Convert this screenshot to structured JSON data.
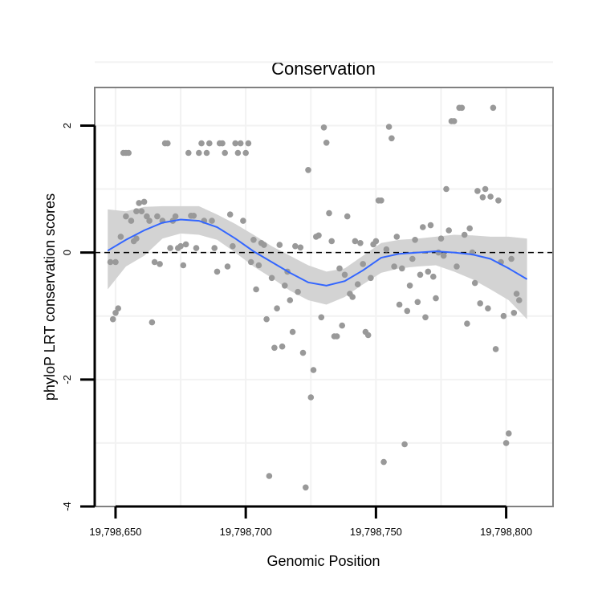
{
  "chart_data": {
    "type": "scatter",
    "title": "Conservation",
    "xlabel": "Genomic Position",
    "ylabel": "phyloP LRT conservation scores",
    "xlim": [
      19798642,
      19798818
    ],
    "ylim": [
      -4,
      2.6
    ],
    "x_ticks": [
      19798650,
      19798700,
      19798750,
      19798800
    ],
    "x_tick_labels": [
      "19,798,650",
      "19,798,700",
      "19,798,750",
      "19,798,800"
    ],
    "y_ticks": [
      -4,
      -2,
      0,
      2
    ],
    "y_tick_labels": [
      "-4",
      "-2",
      "0",
      "2"
    ],
    "reference_line": {
      "y": 0,
      "style": "dashed"
    },
    "colors": {
      "points": "#999999",
      "smooth": "#3366ff",
      "band": "#d3d3d3",
      "frame": "#808080"
    },
    "series": [
      {
        "name": "scores",
        "points": [
          [
            19798648,
            -0.15
          ],
          [
            19798649,
            -1.05
          ],
          [
            19798650,
            -0.95
          ],
          [
            19798650,
            -0.15
          ],
          [
            19798651,
            -0.88
          ],
          [
            19798652,
            0.25
          ],
          [
            19798653,
            1.57
          ],
          [
            19798654,
            1.57
          ],
          [
            19798654,
            0.57
          ],
          [
            19798655,
            1.57
          ],
          [
            19798656,
            0.5
          ],
          [
            19798657,
            0.18
          ],
          [
            19798658,
            0.22
          ],
          [
            19798658,
            0.65
          ],
          [
            19798659,
            0.78
          ],
          [
            19798660,
            0.65
          ],
          [
            19798661,
            0.8
          ],
          [
            19798662,
            0.57
          ],
          [
            19798663,
            0.5
          ],
          [
            19798664,
            -1.1
          ],
          [
            19798665,
            -0.15
          ],
          [
            19798666,
            0.57
          ],
          [
            19798667,
            -0.18
          ],
          [
            19798668,
            0.5
          ],
          [
            19798669,
            1.72
          ],
          [
            19798670,
            1.72
          ],
          [
            19798671,
            0.07
          ],
          [
            19798672,
            0.5
          ],
          [
            19798673,
            0.57
          ],
          [
            19798674,
            0.07
          ],
          [
            19798675,
            0.1
          ],
          [
            19798676,
            -0.2
          ],
          [
            19798677,
            0.13
          ],
          [
            19798678,
            1.57
          ],
          [
            19798679,
            0.58
          ],
          [
            19798680,
            0.58
          ],
          [
            19798681,
            0.07
          ],
          [
            19798682,
            1.57
          ],
          [
            19798683,
            1.72
          ],
          [
            19798684,
            0.5
          ],
          [
            19798685,
            1.57
          ],
          [
            19798686,
            1.72
          ],
          [
            19798687,
            0.5
          ],
          [
            19798688,
            0.07
          ],
          [
            19798689,
            -0.3
          ],
          [
            19798690,
            1.72
          ],
          [
            19798691,
            1.72
          ],
          [
            19798692,
            1.57
          ],
          [
            19798693,
            -0.22
          ],
          [
            19798694,
            0.6
          ],
          [
            19798695,
            0.1
          ],
          [
            19798696,
            1.72
          ],
          [
            19798697,
            1.57
          ],
          [
            19798698,
            1.72
          ],
          [
            19798699,
            0.5
          ],
          [
            19798700,
            1.57
          ],
          [
            19798701,
            1.72
          ],
          [
            19798702,
            -0.15
          ],
          [
            19798703,
            0.2
          ],
          [
            19798704,
            -0.58
          ],
          [
            19798705,
            -0.2
          ],
          [
            19798706,
            0.15
          ],
          [
            19798707,
            0.12
          ],
          [
            19798708,
            -1.05
          ],
          [
            19798709,
            -3.52
          ],
          [
            19798710,
            -0.4
          ],
          [
            19798711,
            -1.5
          ],
          [
            19798712,
            -0.88
          ],
          [
            19798713,
            0.12
          ],
          [
            19798714,
            -1.48
          ],
          [
            19798715,
            -0.52
          ],
          [
            19798716,
            -0.3
          ],
          [
            19798717,
            -0.75
          ],
          [
            19798718,
            -1.25
          ],
          [
            19798719,
            0.1
          ],
          [
            19798720,
            -0.62
          ],
          [
            19798721,
            0.08
          ],
          [
            19798722,
            -1.58
          ],
          [
            19798723,
            -3.7
          ],
          [
            19798724,
            1.3
          ],
          [
            19798725,
            -2.28
          ],
          [
            19798726,
            -1.85
          ],
          [
            19798727,
            0.25
          ],
          [
            19798728,
            0.27
          ],
          [
            19798729,
            -1.02
          ],
          [
            19798730,
            1.97
          ],
          [
            19798731,
            1.73
          ],
          [
            19798732,
            0.62
          ],
          [
            19798733,
            0.18
          ],
          [
            19798734,
            -1.32
          ],
          [
            19798735,
            -1.32
          ],
          [
            19798736,
            -0.25
          ],
          [
            19798737,
            -1.15
          ],
          [
            19798738,
            -0.35
          ],
          [
            19798739,
            0.57
          ],
          [
            19798740,
            -0.65
          ],
          [
            19798741,
            -0.7
          ],
          [
            19798742,
            0.18
          ],
          [
            19798743,
            -0.5
          ],
          [
            19798744,
            0.15
          ],
          [
            19798745,
            -0.18
          ],
          [
            19798746,
            -1.25
          ],
          [
            19798747,
            -1.3
          ],
          [
            19798748,
            -0.4
          ],
          [
            19798749,
            0.13
          ],
          [
            19798750,
            0.18
          ],
          [
            19798751,
            0.82
          ],
          [
            19798752,
            0.82
          ],
          [
            19798753,
            -3.3
          ],
          [
            19798754,
            0.05
          ],
          [
            19798755,
            1.98
          ],
          [
            19798756,
            1.8
          ],
          [
            19798757,
            -0.22
          ],
          [
            19798758,
            0.25
          ],
          [
            19798759,
            -0.82
          ],
          [
            19798760,
            -0.25
          ],
          [
            19798761,
            -3.02
          ],
          [
            19798762,
            -0.92
          ],
          [
            19798763,
            -0.52
          ],
          [
            19798764,
            -0.1
          ],
          [
            19798765,
            0.2
          ],
          [
            19798766,
            -0.78
          ],
          [
            19798767,
            -0.35
          ],
          [
            19798768,
            0.4
          ],
          [
            19798769,
            -1.02
          ],
          [
            19798770,
            -0.3
          ],
          [
            19798771,
            0.43
          ],
          [
            19798772,
            -0.38
          ],
          [
            19798773,
            -0.72
          ],
          [
            19798774,
            0.0
          ],
          [
            19798775,
            0.22
          ],
          [
            19798776,
            -0.05
          ],
          [
            19798777,
            1.0
          ],
          [
            19798778,
            0.35
          ],
          [
            19798779,
            2.07
          ],
          [
            19798780,
            2.07
          ],
          [
            19798781,
            -0.22
          ],
          [
            19798782,
            2.28
          ],
          [
            19798783,
            2.28
          ],
          [
            19798784,
            0.28
          ],
          [
            19798785,
            -1.12
          ],
          [
            19798786,
            0.38
          ],
          [
            19798787,
            0.0
          ],
          [
            19798788,
            -0.48
          ],
          [
            19798789,
            0.97
          ],
          [
            19798790,
            -0.8
          ],
          [
            19798791,
            0.87
          ],
          [
            19798792,
            1.0
          ],
          [
            19798793,
            -0.88
          ],
          [
            19798794,
            0.88
          ],
          [
            19798795,
            2.28
          ],
          [
            19798796,
            -1.52
          ],
          [
            19798797,
            0.82
          ],
          [
            19798798,
            -0.15
          ],
          [
            19798799,
            -1.0
          ],
          [
            19798800,
            -3.0
          ],
          [
            19798801,
            -2.85
          ],
          [
            19798802,
            -0.1
          ],
          [
            19798803,
            -0.95
          ],
          [
            19798804,
            -0.65
          ],
          [
            19798805,
            -0.75
          ]
        ]
      },
      {
        "name": "smooth",
        "x": [
          19798647,
          19798654,
          19798661,
          19798668,
          19798675,
          19798682,
          19798689,
          19798696,
          19798703,
          19798710,
          19798717,
          19798724,
          19798731,
          19798738,
          19798745,
          19798752,
          19798759,
          19798766,
          19798773,
          19798780,
          19798787,
          19798794,
          19798801,
          19798808
        ],
        "y": [
          0.03,
          0.2,
          0.35,
          0.47,
          0.52,
          0.5,
          0.4,
          0.22,
          0.02,
          -0.15,
          -0.32,
          -0.47,
          -0.52,
          -0.45,
          -0.28,
          -0.08,
          -0.02,
          0.0,
          0.02,
          0.0,
          -0.03,
          -0.1,
          -0.25,
          -0.42
        ],
        "upper": [
          0.68,
          0.65,
          0.72,
          0.73,
          0.73,
          0.73,
          0.6,
          0.45,
          0.28,
          0.1,
          -0.05,
          -0.2,
          -0.3,
          -0.25,
          -0.05,
          0.15,
          0.2,
          0.22,
          0.25,
          0.28,
          0.27,
          0.25,
          0.25,
          0.22
        ],
        "lower": [
          -0.58,
          -0.22,
          -0.05,
          0.22,
          0.3,
          0.28,
          0.2,
          0.0,
          -0.22,
          -0.4,
          -0.6,
          -0.75,
          -0.82,
          -0.7,
          -0.5,
          -0.32,
          -0.25,
          -0.22,
          -0.2,
          -0.3,
          -0.42,
          -0.58,
          -0.75,
          -1.05
        ]
      }
    ]
  }
}
